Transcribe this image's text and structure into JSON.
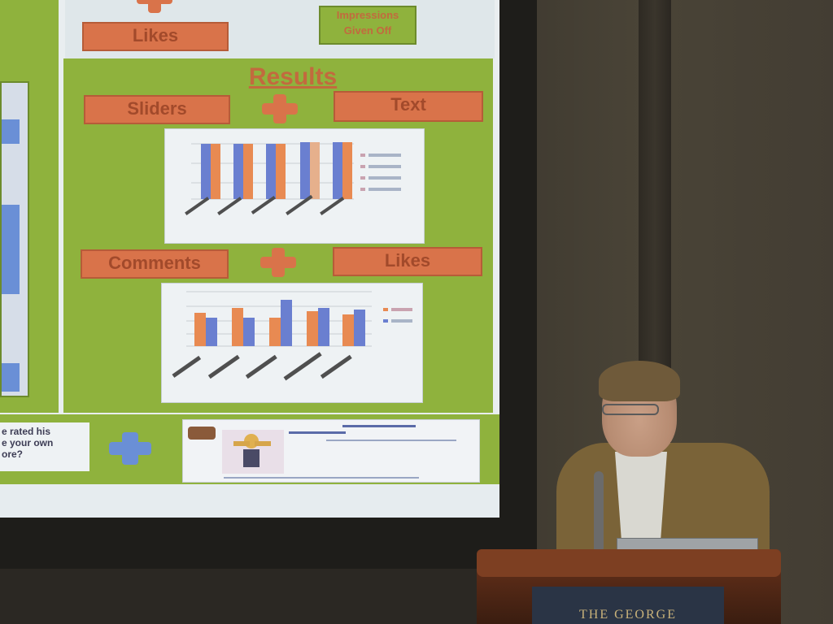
{
  "slide": {
    "top_label": "Likes",
    "impressions_label": "Impressions Given Off",
    "results_title": "Results",
    "sliders_label": "Sliders",
    "text_label": "Text",
    "comments_label": "Comments",
    "likes_label": "Likes",
    "rated_lines": [
      "e rated his",
      "e your own",
      "ore?"
    ]
  },
  "podium": {
    "plaque_text": "THE GEORGE"
  },
  "colors": {
    "slide_green": "#8fb23d",
    "pill_orange": "#d9734a",
    "blue_bar": "#6a7fd0",
    "orange_bar": "#e88a52"
  }
}
